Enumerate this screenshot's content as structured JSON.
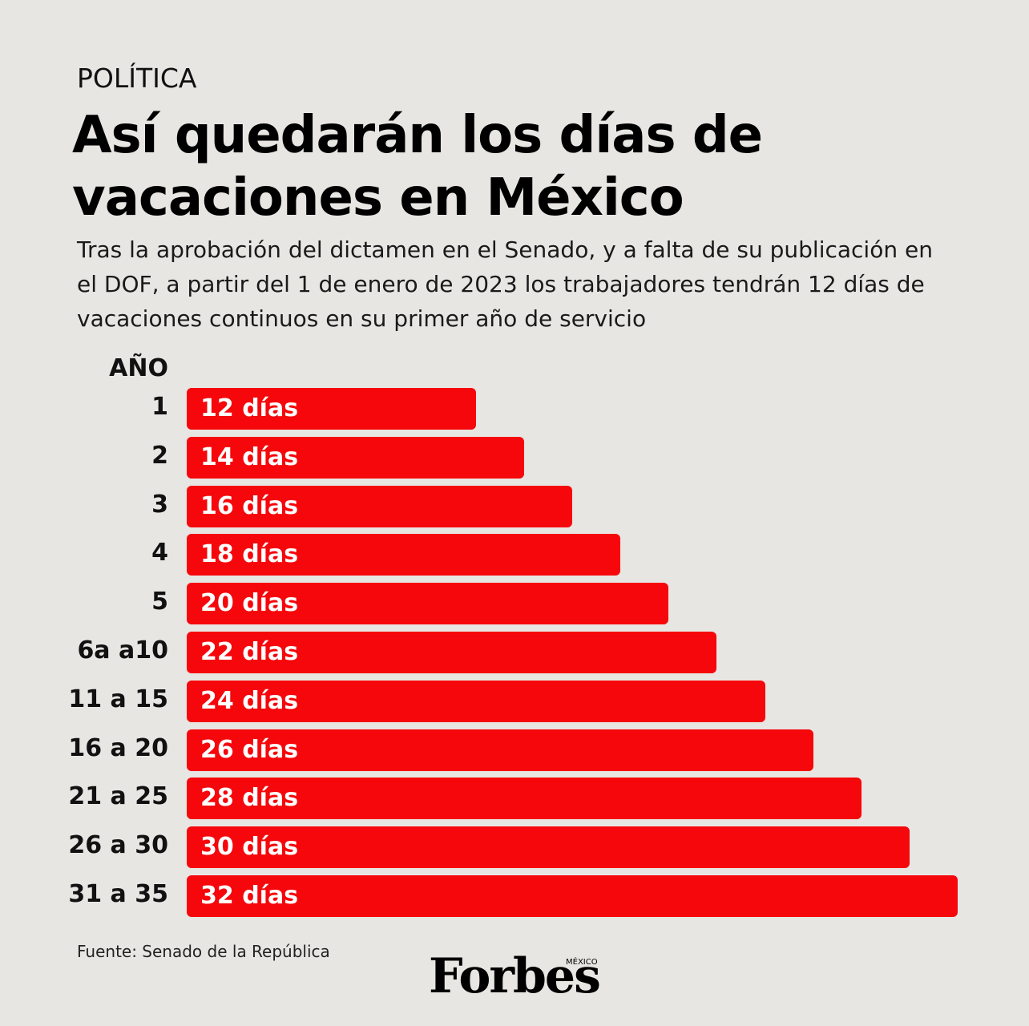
{
  "chart_data": {
    "type": "hbar",
    "kicker": "POLÍTICA",
    "title": "Así quedarán los días de vacaciones en México",
    "subtitle": "Tras la aprobación del dictamen en el Senado, y a falta de su publicación en el DOF, a partir del 1 de enero de 2023 los trabajadores tendrán 12 días de vacaciones continuos en su primer año de servicio",
    "y_label": "AÑO",
    "categories": [
      "1",
      "2",
      "3",
      "4",
      "5",
      "6a a10",
      "11 a 15",
      "16 a 20",
      "21 a 25",
      "26 a 30",
      "31 a 35"
    ],
    "values": [
      12,
      14,
      16,
      18,
      20,
      22,
      24,
      26,
      28,
      30,
      32
    ],
    "value_labels": [
      "12 días",
      "14 días",
      "16 días",
      "18 días",
      "20 días",
      "22 días",
      "24 días",
      "26 días",
      "28 días",
      "30 días",
      "32 días"
    ],
    "color": "#f5070b",
    "source": "Fuente: Senado de la República",
    "logo": "Forbes",
    "logo_sub": "MÉXICO"
  }
}
